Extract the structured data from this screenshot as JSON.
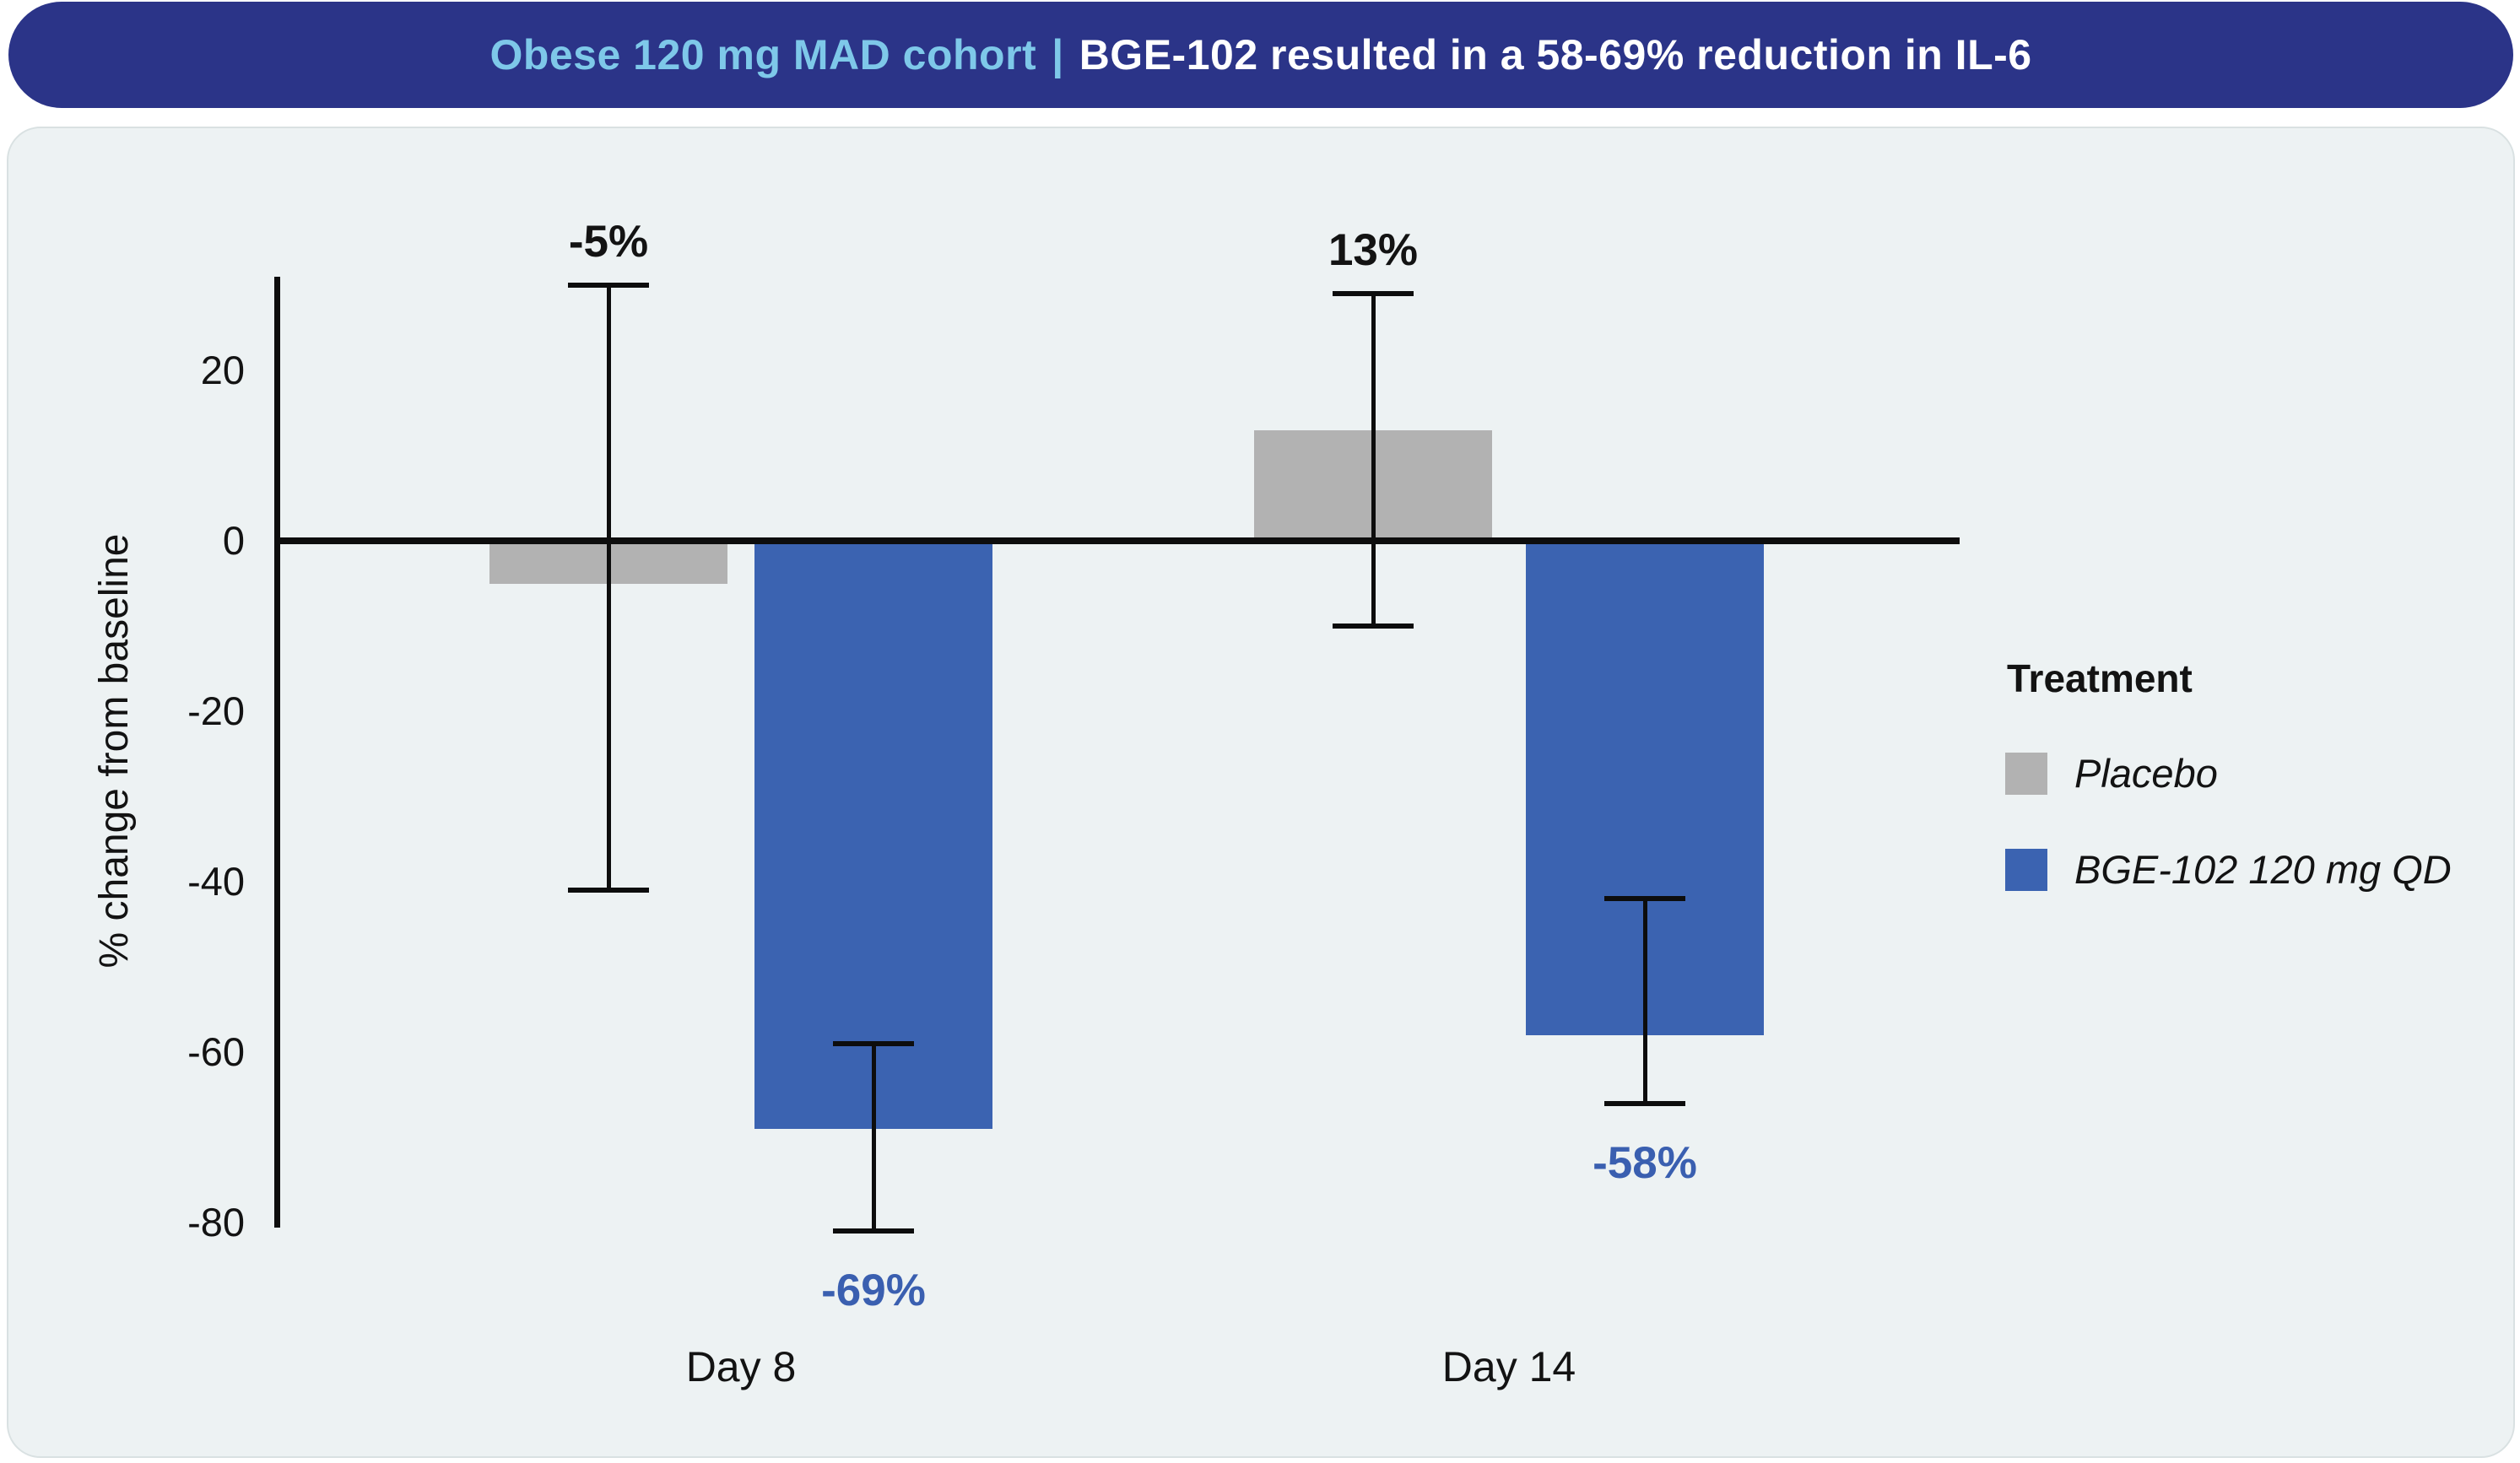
{
  "banner": {
    "highlight": "Obese 120 mg MAD cohort",
    "separator": "|",
    "rest": "BGE-102 resulted in a 58-69% reduction in IL-6"
  },
  "chart_data": {
    "type": "bar",
    "categories": [
      "Day 8",
      "Day 14"
    ],
    "series": [
      {
        "name": "Placebo",
        "color": "#b2b2b2",
        "values": [
          -5,
          13
        ],
        "value_labels": [
          "-5%",
          "13%"
        ],
        "error_high": [
          30,
          29
        ],
        "error_low": [
          -41,
          -10
        ],
        "label_color": "#131313"
      },
      {
        "name": "BGE-102 120 mg QD",
        "color": "#3b63b1",
        "values": [
          -69,
          -58
        ],
        "value_labels": [
          "-69%",
          "-58%"
        ],
        "error_high": [
          -59,
          -42
        ],
        "error_low": [
          -81,
          -66
        ],
        "label_color": "#3a5fb0"
      }
    ],
    "ylabel": "% change from baseline",
    "yticks": [
      "20",
      "0",
      "-20",
      "-40",
      "-60",
      "-80"
    ],
    "ytick_values": [
      20,
      0,
      -20,
      -40,
      -60,
      -80
    ],
    "ylim": [
      -81,
      31
    ],
    "grid": false,
    "legend_title": "Treatment",
    "legend_position": "right"
  }
}
